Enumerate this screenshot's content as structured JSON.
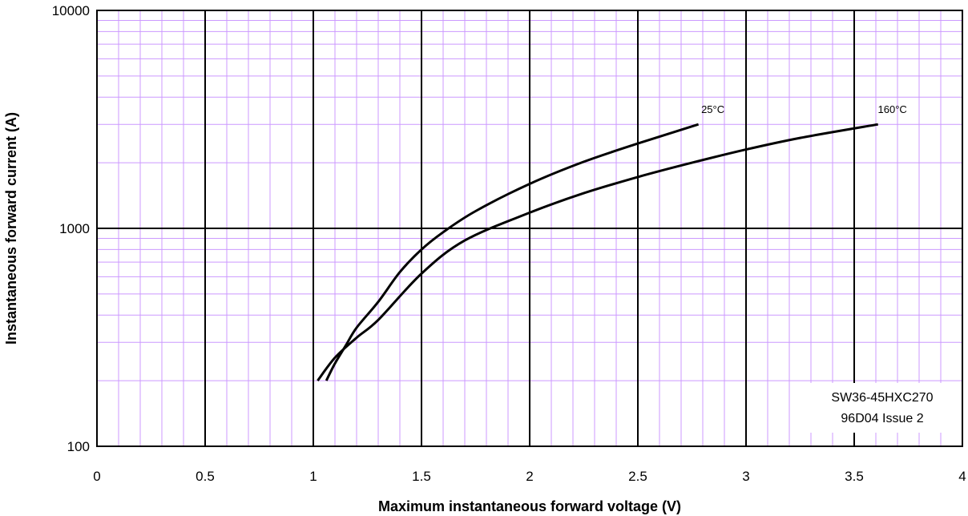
{
  "chart_data": {
    "type": "line",
    "title": "",
    "xlabel": "Maximum instantaneous forward voltage (V)",
    "ylabel": "Instantaneous forward current (A)",
    "xlim": [
      0,
      4
    ],
    "ylim": [
      100,
      10000
    ],
    "yscale": "log",
    "grid": true,
    "x_ticks": [
      0,
      0.5,
      1,
      1.5,
      2,
      2.5,
      3,
      3.5,
      4
    ],
    "x_tick_labels": [
      "0",
      "0.5",
      "1",
      "1.5",
      "2",
      "2.5",
      "3",
      "3.5",
      "4"
    ],
    "y_ticks": [
      100,
      1000,
      10000
    ],
    "y_tick_labels": [
      "100",
      "1000",
      "10000"
    ],
    "series": [
      {
        "name": "25°C",
        "x": [
          1.06,
          1.1,
          1.15,
          1.2,
          1.3,
          1.4,
          1.5,
          1.6,
          1.75,
          2.0,
          2.25,
          2.5,
          2.78
        ],
        "y": [
          200,
          240,
          290,
          350,
          460,
          630,
          800,
          960,
          1200,
          1600,
          2020,
          2450,
          3000
        ]
      },
      {
        "name": "160°C",
        "x": [
          1.02,
          1.1,
          1.2,
          1.3,
          1.5,
          1.7,
          2.0,
          2.25,
          2.5,
          2.75,
          3.0,
          3.25,
          3.61
        ],
        "y": [
          200,
          255,
          315,
          380,
          620,
          880,
          1180,
          1450,
          1720,
          2000,
          2300,
          2600,
          3000
        ]
      }
    ],
    "annotations": [
      "SW36-45HXC270",
      "96D04 Issue 2"
    ],
    "colors": {
      "curve": "#000000",
      "major_grid": "#000000",
      "minor_grid": "#cc99ff"
    }
  }
}
